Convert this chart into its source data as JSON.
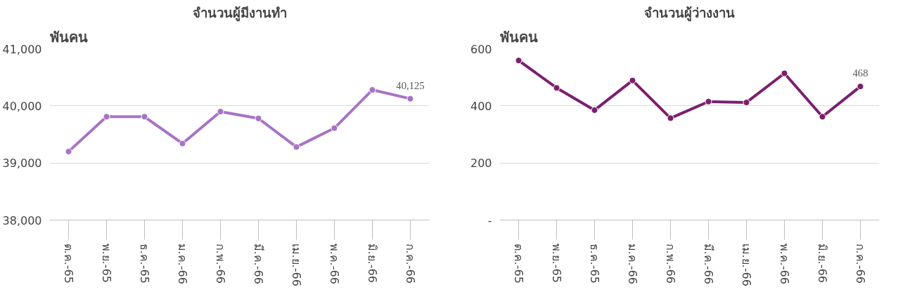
{
  "chart_data": [
    {
      "type": "line",
      "title": "จำนวนผู้มีงานทำ",
      "ylabel": "พันคน",
      "categories": [
        "ต.ค.-65",
        "พ.ย.-65",
        "ธ.ค.-65",
        "ม.ค.-66",
        "ก.พ.-66",
        "มี.ค.-66",
        "เม.ย.-66",
        "พ.ค.-66",
        "มิ.ย.-66",
        "ก.ค.-66"
      ],
      "series": [
        {
          "color": "#a774c4",
          "values": [
            39200,
            39810,
            39810,
            39340,
            39900,
            39780,
            39280,
            39610,
            40280,
            40125
          ],
          "value_labels": [
            null,
            null,
            null,
            null,
            null,
            null,
            null,
            null,
            null,
            "40,125"
          ]
        }
      ],
      "ylim": [
        38000,
        41000
      ],
      "yticks": [
        {
          "value": 38000,
          "label": "38,000"
        },
        {
          "value": 39000,
          "label": "39,000"
        },
        {
          "value": 40000,
          "label": "40,000"
        },
        {
          "value": 41000,
          "label": "41,000"
        }
      ],
      "grid": "y",
      "marker": "circle",
      "line_style": "solid"
    },
    {
      "type": "line",
      "title": "จำนวนผู้ว่างงาน",
      "ylabel": "พันคน",
      "categories": [
        "ต.ค.-65",
        "พ.ย.-65",
        "ธ.ค.-65",
        "ม.ค.-66",
        "ก.พ.-66",
        "มี.ค.-66",
        "เม.ย.-66",
        "พ.ค.-66",
        "มิ.ย.-66",
        "ก.ค.-66"
      ],
      "series": [
        {
          "color": "#7b1f6e",
          "values": [
            559,
            463,
            385,
            489,
            357,
            415,
            412,
            514,
            362,
            468
          ],
          "value_labels": [
            null,
            null,
            null,
            null,
            null,
            null,
            null,
            null,
            null,
            "468"
          ]
        }
      ],
      "ylim": [
        0,
        600
      ],
      "yticks": [
        {
          "value": 0,
          "label": "-"
        },
        200,
        400,
        600
      ],
      "grid": "y",
      "marker": "circle",
      "line_style": "solid"
    }
  ]
}
